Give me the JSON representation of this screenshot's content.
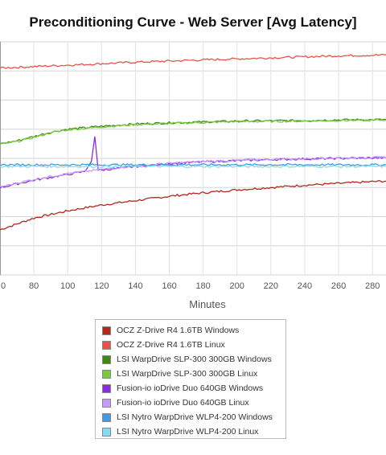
{
  "title": "Preconditioning Curve - Web Server [Avg Latency]",
  "chart_data": {
    "type": "line",
    "title": "Preconditioning Curve - Web Server [Avg Latency]",
    "xlabel": "Minutes",
    "ylabel": "",
    "x_ticks": [
      "0",
      "80",
      "100",
      "120",
      "140",
      "160",
      "180",
      "200",
      "220",
      "240",
      "260",
      "280"
    ],
    "xlim": [
      60,
      288
    ],
    "ylim": [
      0,
      8
    ],
    "grid": "horizontal and vertical",
    "legend_position": "bottom",
    "series": [
      {
        "name": "OCZ Z-Drive R4 1.6TB Windows",
        "color": "#b5261b",
        "x": [
          60,
          80,
          100,
          120,
          140,
          160,
          180,
          200,
          220,
          240,
          260,
          280,
          288
        ],
        "y": [
          1.55,
          1.95,
          2.2,
          2.4,
          2.55,
          2.7,
          2.82,
          2.92,
          3.0,
          3.08,
          3.14,
          3.2,
          3.22
        ]
      },
      {
        "name": "OCZ Z-Drive R4 1.6TB Linux",
        "color": "#e8524a",
        "x": [
          60,
          100,
          140,
          180,
          220,
          260,
          288
        ],
        "y": [
          7.1,
          7.2,
          7.3,
          7.38,
          7.45,
          7.52,
          7.55
        ]
      },
      {
        "name": "LSI WarpDrive SLP-300 300GB Windows",
        "color": "#3c8a12",
        "x": [
          60,
          70,
          80,
          90,
          100,
          120,
          140,
          160,
          180,
          200,
          240,
          260,
          288
        ],
        "y": [
          4.5,
          4.6,
          4.75,
          4.9,
          5.0,
          5.1,
          5.18,
          5.22,
          5.25,
          5.28,
          5.3,
          5.32,
          5.33
        ]
      },
      {
        "name": "LSI WarpDrive SLP-300 300GB Linux",
        "color": "#7ac943",
        "x": [
          60,
          70,
          80,
          90,
          100,
          120,
          140,
          160,
          180,
          200,
          240,
          260,
          288
        ],
        "y": [
          4.48,
          4.58,
          4.72,
          4.88,
          4.98,
          5.08,
          5.16,
          5.2,
          5.23,
          5.26,
          5.28,
          5.3,
          5.31
        ]
      },
      {
        "name": "Fusion-io ioDrive Duo 640GB Windows",
        "color": "#8a2be2",
        "x": [
          60,
          80,
          100,
          110,
          114,
          116,
          118,
          120,
          140,
          160,
          180,
          200,
          220,
          240,
          260,
          288
        ],
        "y": [
          3.0,
          3.25,
          3.45,
          3.55,
          3.9,
          4.75,
          3.6,
          3.6,
          3.72,
          3.82,
          3.88,
          3.92,
          3.96,
          3.98,
          4.0,
          4.02
        ]
      },
      {
        "name": "Fusion-io ioDrive Duo 640GB Linux",
        "color": "#c49aff",
        "x": [
          60,
          80,
          100,
          120,
          140,
          160,
          180,
          200,
          220,
          240,
          260,
          288
        ],
        "y": [
          3.02,
          3.28,
          3.48,
          3.62,
          3.74,
          3.83,
          3.89,
          3.93,
          3.97,
          3.99,
          4.01,
          4.03
        ]
      },
      {
        "name": "LSI Nytro WarpDrive WLP4-200 Windows",
        "color": "#3a9fe0",
        "x": [
          60,
          100,
          140,
          180,
          220,
          260,
          288
        ],
        "y": [
          3.78,
          3.78,
          3.78,
          3.78,
          3.78,
          3.78,
          3.78
        ]
      },
      {
        "name": "LSI Nytro WarpDrive WLP4-200 Linux",
        "color": "#86dcf7",
        "x": [
          60,
          100,
          140,
          180,
          220,
          260,
          288
        ],
        "y": [
          3.72,
          3.72,
          3.72,
          3.72,
          3.72,
          3.72,
          3.72
        ]
      }
    ]
  }
}
